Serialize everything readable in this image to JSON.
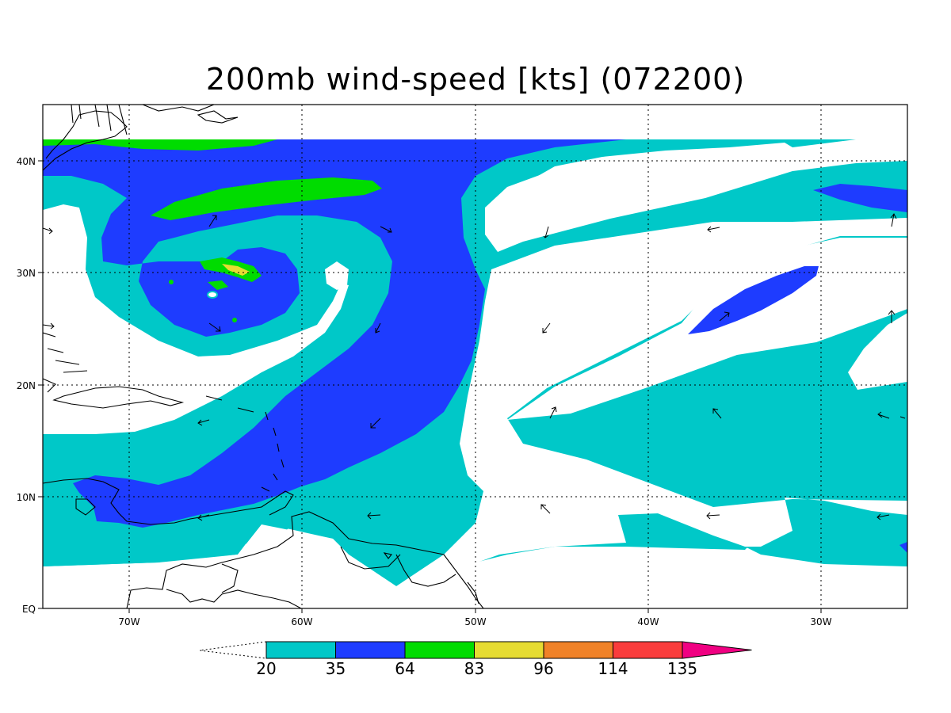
{
  "title": "200mb wind-speed [kts] (072200)",
  "lon_labels": [
    "70W",
    "60W",
    "50W",
    "40W",
    "30W"
  ],
  "lat_labels": [
    "40N",
    "30N",
    "20N",
    "10N",
    "EQ"
  ],
  "colorbar": {
    "bins": [
      {
        "color": "#00c8c8"
      },
      {
        "color": "#1e3cff"
      },
      {
        "color": "#00dc00"
      },
      {
        "color": "#e6dc32"
      },
      {
        "color": "#f08228"
      },
      {
        "color": "#fa3c3c"
      },
      {
        "color": "#f00082"
      }
    ],
    "labels": [
      "20",
      "35",
      "64",
      "83",
      "96",
      "114",
      "135"
    ]
  },
  "colors": {
    "land_outline": "#000000",
    "grid": "#000000",
    "background": "#ffffff"
  }
}
